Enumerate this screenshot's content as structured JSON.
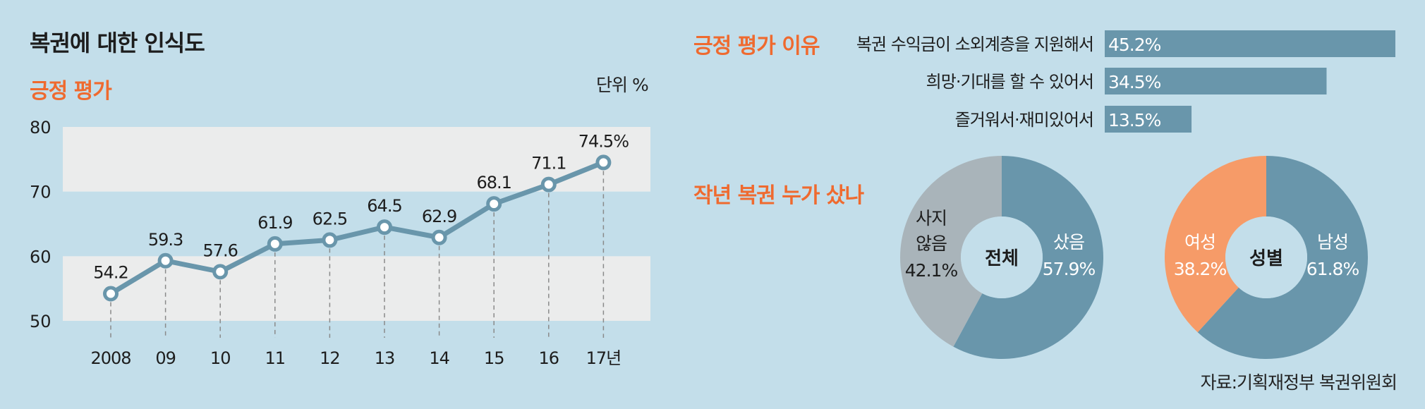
{
  "title": "복권에 대한 인식도",
  "source": "자료:기획재정부 복권위원회",
  "colors": {
    "background": "#c3deea",
    "band": "#ebecec",
    "series": "#6996ab",
    "accent": "#ef6a2f",
    "grey": "#a9b4ba",
    "orange": "#f69b68"
  },
  "chart_data": [
    {
      "type": "line",
      "title": "긍정 평가",
      "unit_label": "단위 %",
      "x": [
        "2008",
        "09",
        "10",
        "11",
        "12",
        "13",
        "14",
        "15",
        "16",
        "17년"
      ],
      "ylim": [
        50,
        80
      ],
      "yticks": [
        50,
        60,
        70,
        80
      ],
      "series": [
        {
          "values": [
            54.2,
            59.3,
            57.6,
            61.9,
            62.5,
            64.5,
            62.9,
            68.1,
            71.1,
            74.5
          ],
          "labels": [
            "54.2",
            "59.3",
            "57.6",
            "61.9",
            "62.5",
            "64.5",
            "62.9",
            "68.1",
            "71.1",
            "74.5%"
          ]
        }
      ]
    },
    {
      "type": "bar",
      "orientation": "horizontal",
      "title": "긍정 평가 이유",
      "categories": [
        "복권 수익금이 소외계층을 지원해서",
        "희망·기대를 할 수 있어서",
        "즐거워서·재미있어서"
      ],
      "values": [
        45.2,
        34.5,
        13.5
      ],
      "labels": [
        "45.2%",
        "34.5%",
        "13.5%"
      ]
    },
    {
      "type": "pie",
      "title": "작년 복권 누가 샀나",
      "center_label": "전체",
      "slices": [
        {
          "name": "샀음",
          "value": 57.9,
          "label": "57.9%",
          "color": "#6996ab"
        },
        {
          "name": "사지 않음",
          "name_lines": [
            "사지",
            "않음"
          ],
          "value": 42.1,
          "label": "42.1%",
          "color": "#a9b4ba"
        }
      ]
    },
    {
      "type": "pie",
      "center_label": "성별",
      "slices": [
        {
          "name": "남성",
          "value": 61.8,
          "label": "61.8%",
          "color": "#6996ab"
        },
        {
          "name": "여성",
          "value": 38.2,
          "label": "38.2%",
          "color": "#f69b68"
        }
      ]
    }
  ]
}
